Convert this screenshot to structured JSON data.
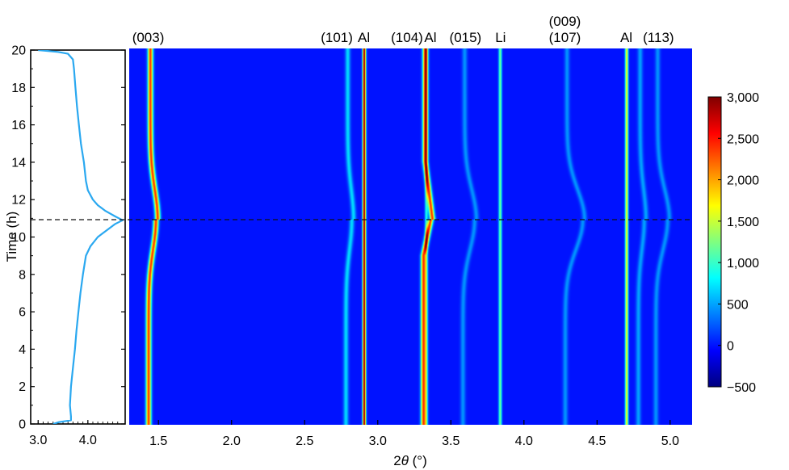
{
  "chart_data": [
    {
      "type": "line",
      "panel": "voltage-profile",
      "ylabel": "Time (h)",
      "xticks": [
        "3.0",
        "4.0"
      ],
      "yticks": [
        "0",
        "2",
        "4",
        "6",
        "8",
        "10",
        "12",
        "14",
        "16",
        "18",
        "20"
      ],
      "xlim": [
        2.85,
        4.75
      ],
      "ylim": [
        0,
        20
      ],
      "line_color": "#2aa8f0",
      "points": [
        [
          3.3,
          0.0
        ],
        [
          3.42,
          0.1
        ],
        [
          3.66,
          0.2
        ],
        [
          3.66,
          0.4
        ],
        [
          3.64,
          1.0
        ],
        [
          3.66,
          2.0
        ],
        [
          3.7,
          3.0
        ],
        [
          3.74,
          4.0
        ],
        [
          3.77,
          5.0
        ],
        [
          3.81,
          6.0
        ],
        [
          3.85,
          7.0
        ],
        [
          3.9,
          8.0
        ],
        [
          3.96,
          9.0
        ],
        [
          4.05,
          9.5
        ],
        [
          4.2,
          10.0
        ],
        [
          4.4,
          10.4
        ],
        [
          4.55,
          10.7
        ],
        [
          4.7,
          10.9
        ],
        [
          4.55,
          11.1
        ],
        [
          4.35,
          11.4
        ],
        [
          4.2,
          11.7
        ],
        [
          4.1,
          12.0
        ],
        [
          4.0,
          12.5
        ],
        [
          3.96,
          13.0
        ],
        [
          3.92,
          14.0
        ],
        [
          3.86,
          15.0
        ],
        [
          3.82,
          16.0
        ],
        [
          3.78,
          17.0
        ],
        [
          3.75,
          18.0
        ],
        [
          3.72,
          19.0
        ],
        [
          3.7,
          19.5
        ],
        [
          3.6,
          19.8
        ],
        [
          3.4,
          19.9
        ],
        [
          3.0,
          20.0
        ]
      ]
    },
    {
      "type": "heatmap",
      "panel": "xrd-contour",
      "xlabel": "2θ (°)",
      "ylabel": "Time (h)",
      "xticks": [
        "1.5",
        "2.0",
        "2.5",
        "3.0",
        "3.5",
        "4.0",
        "4.5",
        "5.0"
      ],
      "xlim": [
        1.3,
        5.15
      ],
      "ylim": [
        0,
        20
      ],
      "background_intensity": 0,
      "colorbar": {
        "ticks": [
          "3,000",
          "2,500",
          "2,000",
          "1,500",
          "1,000",
          "500",
          "0",
          "−500"
        ],
        "range": [
          -500,
          3000
        ],
        "colormap": "jet"
      },
      "dashed_line_time_h": 10.9,
      "peaks": [
        {
          "label": "(003)",
          "pos_start": 1.43,
          "pos_mid": 1.48,
          "pos_end": 1.43,
          "shape": "bulge",
          "intensity": 2400
        },
        {
          "label": "(101)",
          "pos_start": 2.78,
          "pos_mid": 2.82,
          "pos_end": 2.78,
          "shape": "bulge",
          "intensity": 700
        },
        {
          "label": "Al",
          "pos_start": 2.905,
          "pos_mid": 2.905,
          "pos_end": 2.905,
          "shape": "const",
          "intensity": 3000
        },
        {
          "label": "(104)",
          "pos_start": 3.31,
          "pos_mid": 3.36,
          "pos_end": 3.31,
          "shape": "vee",
          "intensity": 2400
        },
        {
          "label": "Al",
          "pos_start": 3.33,
          "pos_mid": 3.33,
          "pos_end": 3.33,
          "shape": "const",
          "intensity": 900
        },
        {
          "label": "(015)",
          "pos_start": 3.58,
          "pos_mid": 3.66,
          "pos_end": 3.58,
          "shape": "bulge",
          "intensity": 450
        },
        {
          "label": "Li",
          "pos_start": 3.835,
          "pos_mid": 3.835,
          "pos_end": 3.835,
          "shape": "const",
          "intensity": 1200
        },
        {
          "label": "(009) (107)",
          "pos_start": 4.28,
          "pos_mid": 4.4,
          "pos_end": 4.28,
          "shape": "bulge",
          "intensity": 450
        },
        {
          "label": "Al",
          "pos_start": 4.7,
          "pos_mid": 4.7,
          "pos_end": 4.7,
          "shape": "const",
          "intensity": 1700
        },
        {
          "label": "",
          "pos_start": 4.78,
          "pos_mid": 4.82,
          "pos_end": 4.78,
          "shape": "bulge",
          "intensity": 500
        },
        {
          "label": "(113)",
          "pos_start": 4.9,
          "pos_mid": 4.98,
          "pos_end": 4.9,
          "shape": "bulge",
          "intensity": 450
        }
      ]
    }
  ],
  "peak_labels": [
    {
      "text": "(003)",
      "at": 1.43,
      "row": 0
    },
    {
      "text": "(101)",
      "at": 2.72,
      "row": 0
    },
    {
      "text": "Al",
      "at": 2.905,
      "row": 0
    },
    {
      "text": "(104)",
      "at": 3.2,
      "row": 0
    },
    {
      "text": "Al",
      "at": 3.36,
      "row": 0
    },
    {
      "text": "(015)",
      "at": 3.6,
      "row": 0
    },
    {
      "text": "Li",
      "at": 3.84,
      "row": 0
    },
    {
      "text": "(009)",
      "at": 4.28,
      "row": -1
    },
    {
      "text": "(107)",
      "at": 4.28,
      "row": 0
    },
    {
      "text": "Al",
      "at": 4.7,
      "row": 0
    },
    {
      "text": "(113)",
      "at": 4.92,
      "row": 0
    }
  ]
}
